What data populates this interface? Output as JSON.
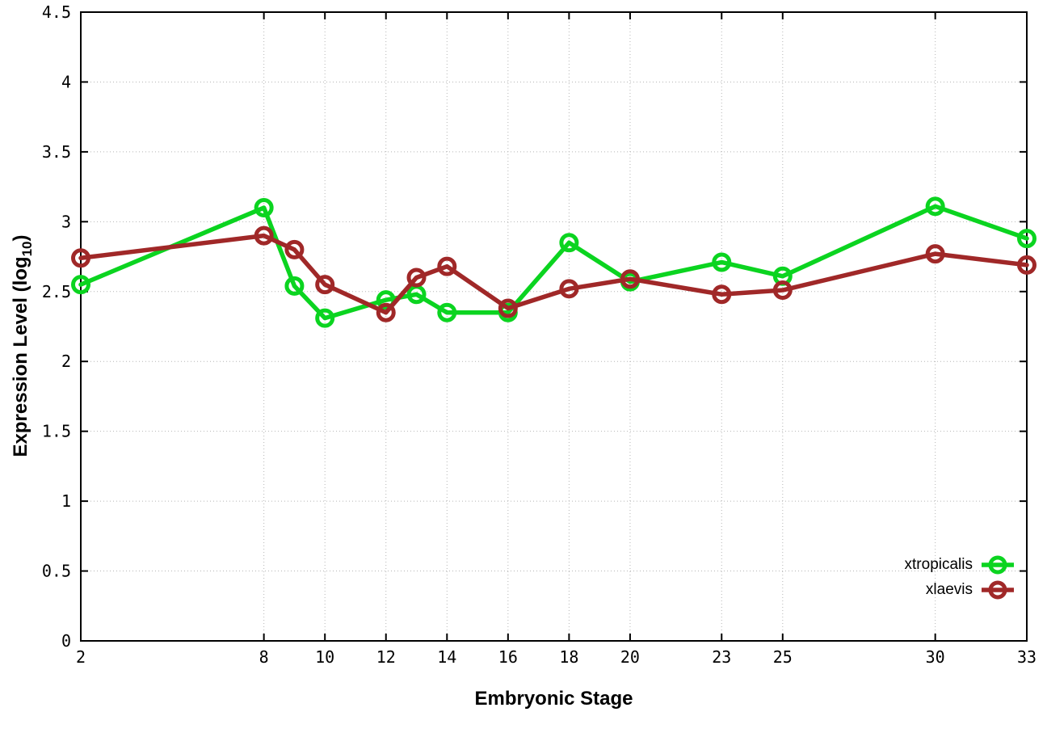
{
  "chart_data": {
    "type": "line",
    "title": "",
    "xlabel": "Embryonic Stage",
    "ylabel": {
      "prefix": "Expression Level (log",
      "sub": "10",
      "suffix": ")"
    },
    "x": [
      2,
      8,
      9,
      10,
      12,
      13,
      14,
      16,
      18,
      20,
      23,
      25,
      30,
      33
    ],
    "series": [
      {
        "name": "xtropicalis",
        "color": "#0bd420",
        "values": [
          2.55,
          3.1,
          2.54,
          2.31,
          2.44,
          2.48,
          2.35,
          2.35,
          2.85,
          2.57,
          2.71,
          2.61,
          3.11,
          2.88
        ]
      },
      {
        "name": "xlaevis",
        "color": "#a02828",
        "values": [
          2.74,
          2.9,
          2.8,
          2.55,
          2.35,
          2.6,
          2.68,
          2.38,
          2.52,
          2.59,
          2.48,
          2.51,
          2.77,
          2.69
        ]
      }
    ],
    "xlim": [
      2,
      33
    ],
    "ylim": [
      0,
      4.5
    ],
    "xticks": [
      {
        "v": 2,
        "label": "2"
      },
      {
        "v": 8,
        "label": "8"
      },
      {
        "v": 10,
        "label": "10"
      },
      {
        "v": 12,
        "label": "12"
      },
      {
        "v": 14,
        "label": "14"
      },
      {
        "v": 16,
        "label": "16"
      },
      {
        "v": 18,
        "label": "18"
      },
      {
        "v": 20,
        "label": "20"
      },
      {
        "v": 23,
        "label": "23"
      },
      {
        "v": 25,
        "label": "25"
      },
      {
        "v": 30,
        "label": "30"
      },
      {
        "v": 33,
        "label": "33"
      }
    ],
    "yticks": [
      {
        "v": 0,
        "label": "0"
      },
      {
        "v": 0.5,
        "label": "0.5"
      },
      {
        "v": 1,
        "label": "1"
      },
      {
        "v": 1.5,
        "label": "1.5"
      },
      {
        "v": 2,
        "label": "2"
      },
      {
        "v": 2.5,
        "label": "2.5"
      },
      {
        "v": 3,
        "label": "3"
      },
      {
        "v": 3.5,
        "label": "3.5"
      },
      {
        "v": 4,
        "label": "4"
      },
      {
        "v": 4.5,
        "label": "4.5"
      }
    ],
    "grid": true,
    "legend_position": "bottom-right",
    "colors": {
      "grid": "#b5b5b5",
      "axis": "#000000",
      "background": "#ffffff"
    }
  }
}
